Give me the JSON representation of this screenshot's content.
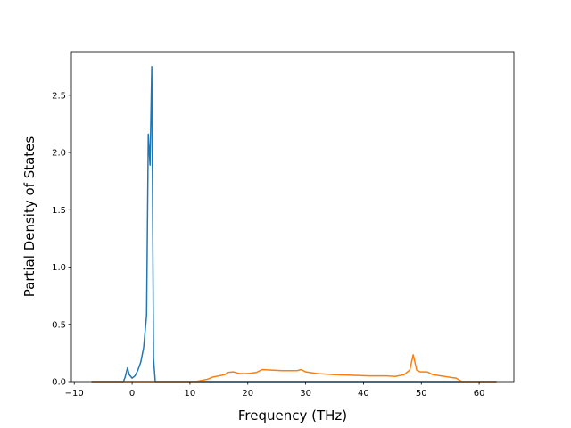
{
  "chart_data": {
    "type": "line",
    "xlabel": "Frequency (THz)",
    "ylabel": "Partial Density of States",
    "xlim": [
      -10.5,
      66.0
    ],
    "ylim": [
      0,
      2.88
    ],
    "x_ticks": [
      -10,
      0,
      10,
      20,
      30,
      40,
      50,
      60
    ],
    "x_tick_labels": [
      "−10",
      "0",
      "10",
      "20",
      "30",
      "40",
      "50",
      "60"
    ],
    "y_ticks": [
      0.0,
      0.5,
      1.0,
      1.5,
      2.0,
      2.5
    ],
    "y_tick_labels": [
      "0.0",
      "0.5",
      "1.0",
      "1.5",
      "2.0",
      "2.5"
    ],
    "grid": false,
    "series": [
      {
        "color": "#1f77b4",
        "points": [
          [
            -7,
            0.0
          ],
          [
            -1.5,
            0.0
          ],
          [
            -1.2,
            0.04
          ],
          [
            -0.8,
            0.12
          ],
          [
            -0.5,
            0.06
          ],
          [
            0.0,
            0.03
          ],
          [
            0.5,
            0.05
          ],
          [
            1.0,
            0.1
          ],
          [
            1.5,
            0.17
          ],
          [
            2.0,
            0.3
          ],
          [
            2.5,
            0.58
          ],
          [
            2.8,
            2.16
          ],
          [
            3.1,
            1.89
          ],
          [
            3.4,
            2.75
          ],
          [
            3.7,
            0.2
          ],
          [
            4.0,
            0.0
          ],
          [
            63,
            0.0
          ]
        ]
      },
      {
        "color": "#ff7f0e",
        "points": [
          [
            -7,
            0.0
          ],
          [
            11.0,
            0.0
          ],
          [
            12.0,
            0.01
          ],
          [
            13.0,
            0.02
          ],
          [
            14.0,
            0.04
          ],
          [
            15.0,
            0.05
          ],
          [
            16.0,
            0.06
          ],
          [
            16.5,
            0.08
          ],
          [
            17.5,
            0.085
          ],
          [
            18.5,
            0.07
          ],
          [
            20.0,
            0.07
          ],
          [
            21.5,
            0.08
          ],
          [
            22.5,
            0.105
          ],
          [
            24.0,
            0.1
          ],
          [
            26.0,
            0.095
          ],
          [
            28.5,
            0.095
          ],
          [
            29.2,
            0.105
          ],
          [
            30.0,
            0.085
          ],
          [
            32.0,
            0.07
          ],
          [
            35.0,
            0.06
          ],
          [
            38.0,
            0.055
          ],
          [
            41.0,
            0.05
          ],
          [
            44.0,
            0.05
          ],
          [
            45.5,
            0.045
          ],
          [
            47.0,
            0.06
          ],
          [
            48.0,
            0.1
          ],
          [
            48.6,
            0.235
          ],
          [
            49.2,
            0.1
          ],
          [
            49.8,
            0.085
          ],
          [
            51.0,
            0.085
          ],
          [
            52.0,
            0.06
          ],
          [
            54.0,
            0.045
          ],
          [
            56.0,
            0.03
          ],
          [
            57.0,
            0.0
          ],
          [
            63,
            0.0
          ]
        ]
      }
    ]
  }
}
